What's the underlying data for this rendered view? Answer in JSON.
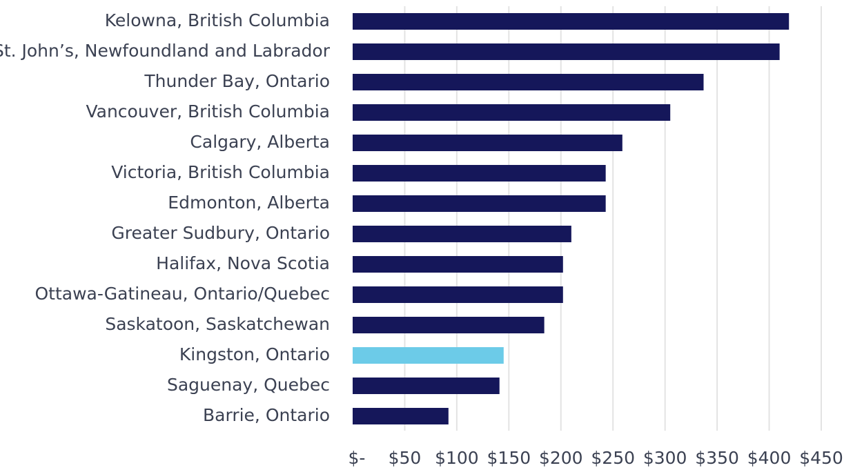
{
  "chart_data": {
    "type": "bar",
    "orientation": "horizontal",
    "categories": [
      "Kelowna, British Columbia",
      "St. John’s, Newfoundland and Labrador",
      "Thunder Bay, Ontario",
      "Vancouver, British Columbia",
      "Calgary, Alberta",
      "Victoria, British Columbia",
      "Edmonton, Alberta",
      "Greater Sudbury, Ontario",
      "Halifax, Nova Scotia",
      "Ottawa-Gatineau, Ontario/Quebec",
      "Saskatoon, Saskatchewan",
      "Kingston, Ontario",
      "Saguenay, Quebec",
      "Barrie, Ontario"
    ],
    "values": [
      419,
      410,
      337,
      305,
      259,
      243,
      243,
      210,
      202,
      202,
      184,
      145,
      141,
      92
    ],
    "colors": [
      "#15175a",
      "#15175a",
      "#15175a",
      "#15175a",
      "#15175a",
      "#15175a",
      "#15175a",
      "#15175a",
      "#15175a",
      "#15175a",
      "#15175a",
      "#6ccbe8",
      "#15175a",
      "#15175a"
    ],
    "xlim": [
      0,
      450
    ],
    "xticks": [
      {
        "value": 0,
        "label": "$-"
      },
      {
        "value": 50,
        "label": "$50"
      },
      {
        "value": 100,
        "label": "$100"
      },
      {
        "value": 150,
        "label": "$150"
      },
      {
        "value": 200,
        "label": "$200"
      },
      {
        "value": 250,
        "label": "$250"
      },
      {
        "value": 300,
        "label": "$300"
      },
      {
        "value": 350,
        "label": "$350"
      },
      {
        "value": 400,
        "label": "$400"
      },
      {
        "value": 450,
        "label": "$450"
      }
    ],
    "grid": true
  }
}
